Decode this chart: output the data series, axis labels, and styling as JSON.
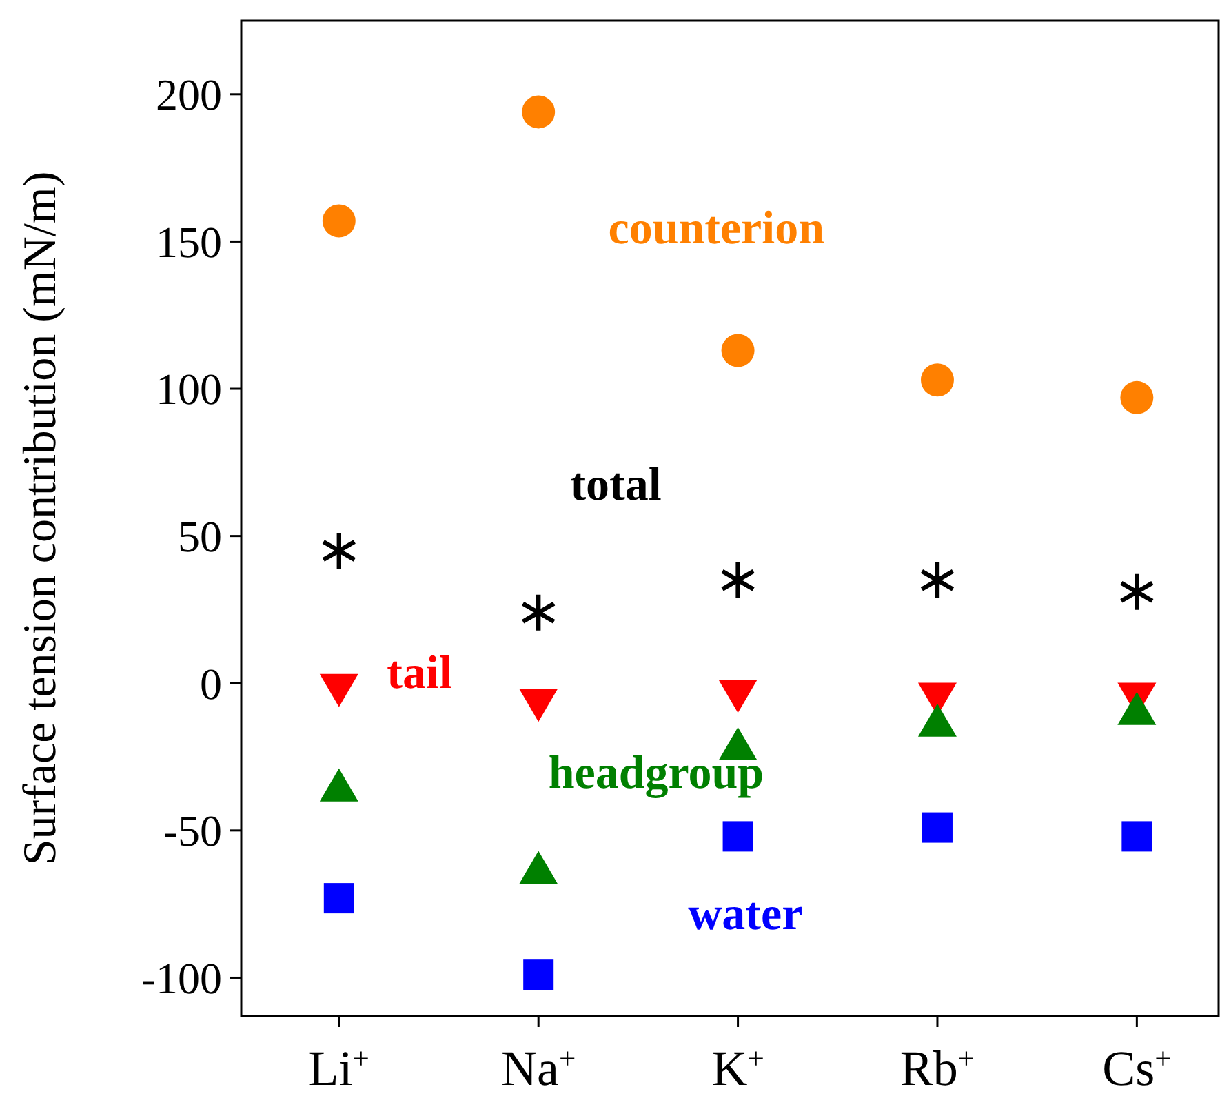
{
  "chart_data": {
    "type": "scatter",
    "ylabel": "Surface tension contribution (mN/m)",
    "categories": [
      "Li$^{+}$",
      "Na$^{+}$",
      "K$^{+}$",
      "Rb$^{+}$",
      "Cs$^{+}$"
    ],
    "ylim": [
      -113,
      225
    ],
    "yticks": [
      -100,
      -50,
      0,
      50,
      100,
      150,
      200
    ],
    "grid": false,
    "series": [
      {
        "name": "counterion",
        "color": "#ff8000",
        "marker": "circle",
        "values": [
          157,
          194,
          113,
          103,
          97
        ]
      },
      {
        "name": "total",
        "color": "#000000",
        "marker": "cross",
        "values": [
          45,
          24,
          35,
          35,
          31
        ]
      },
      {
        "name": "tail",
        "color": "#ff0000",
        "marker": "triangle-down",
        "values": [
          -2,
          -7,
          -4,
          -5,
          -5
        ]
      },
      {
        "name": "headgroup",
        "color": "#008000",
        "marker": "triangle",
        "values": [
          -35,
          -63,
          -21,
          -13,
          -9
        ]
      },
      {
        "name": "water",
        "color": "#0000ff",
        "marker": "square",
        "values": [
          -73,
          -99,
          -52,
          -49,
          -52
        ]
      }
    ]
  }
}
